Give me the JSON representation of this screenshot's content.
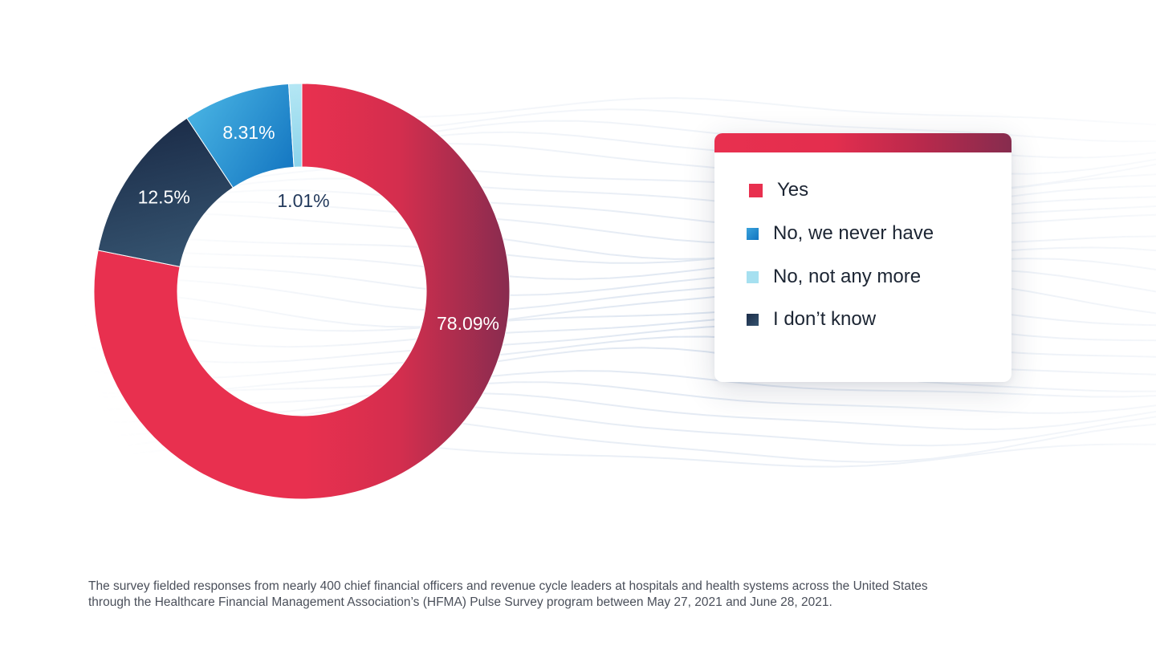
{
  "colors": {
    "yes": "#e8304f",
    "yes_dark": "#8a2c4f",
    "never": "#1779c4",
    "never_light": "#3aa3dc",
    "not_any_more": "#a6e0f0",
    "dont_know": "#1f3350",
    "dont_know_light": "#32506f"
  },
  "chart_data": {
    "type": "pie",
    "style": "donut",
    "categories": [
      "Yes",
      "No, we never have",
      "No, not any more",
      "I don’t know"
    ],
    "values": [
      78.09,
      8.31,
      1.01,
      12.5
    ],
    "labels": [
      "78.09%",
      "8.31%",
      "1.01%",
      "12.5%"
    ],
    "slice_order_clockwise_from_top": [
      "Yes",
      "I don’t know",
      "No, we never have",
      "No, not any more"
    ],
    "legend_position": "right"
  },
  "legend": {
    "items": [
      {
        "label": "Yes",
        "key": "yes"
      },
      {
        "label": "No, we never have",
        "key": "never"
      },
      {
        "label": "No, not any more",
        "key": "not_any_more"
      },
      {
        "label": "I don’t know",
        "key": "dont_know"
      }
    ]
  },
  "footnote": {
    "line1": "The survey fielded responses from nearly 400 chief financial officers and revenue cycle leaders at hospitals and health systems across the United States",
    "line2": "through the Healthcare Financial Management Association’s (HFMA) Pulse Survey program between May 27, 2021 and June 28, 2021."
  }
}
